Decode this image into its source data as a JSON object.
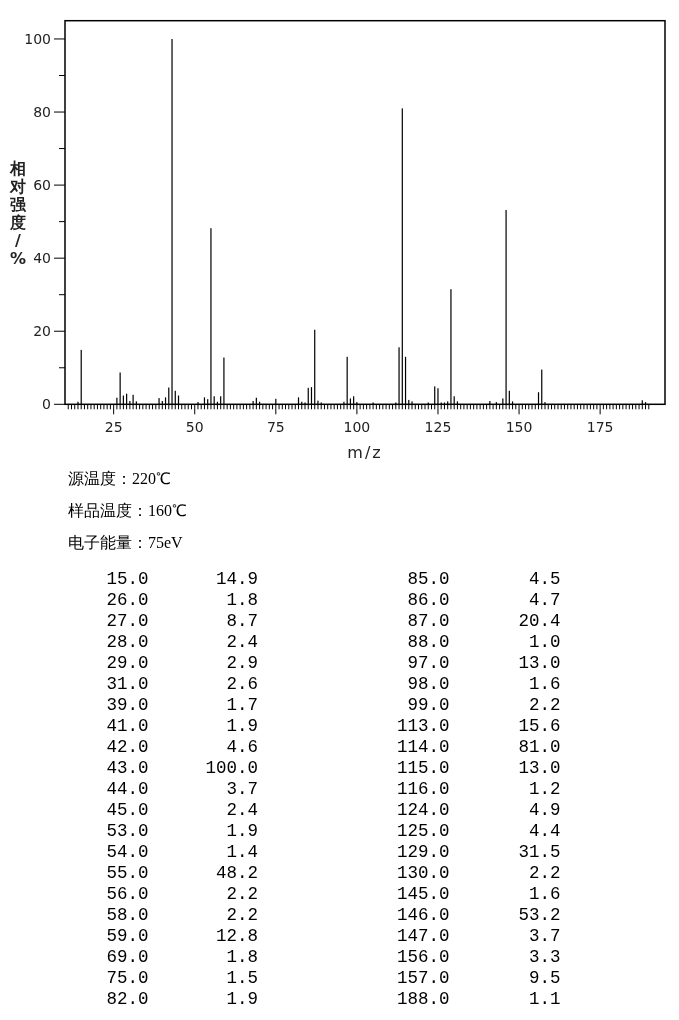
{
  "chart_data": [
    {
      "type": "bar",
      "xlabel": "m/z",
      "ylabel": "相对强度/%",
      "color": "#000000",
      "annotations": [
        "源温度：220℃",
        "样品温度：160℃",
        "电子能量：75eV"
      ],
      "xlim": [
        10,
        195
      ],
      "ylim": [
        0,
        105
      ],
      "yticks": [
        0,
        {
          "value": 10,
          "label": null
        },
        20,
        {
          "value": 30,
          "label": null
        },
        40,
        {
          "value": 50,
          "label": null
        },
        60,
        {
          "value": 70,
          "label": null
        },
        80,
        {
          "value": 90,
          "label": null
        },
        100
      ],
      "xticks": [
        {
          "value": 11,
          "label": null
        },
        {
          "value": 12,
          "label": null
        },
        {
          "value": 13,
          "label": null
        },
        {
          "value": 14,
          "label": null
        },
        {
          "value": 15,
          "label": null
        },
        {
          "value": 16,
          "label": null
        },
        {
          "value": 17,
          "label": null
        },
        {
          "value": 18,
          "label": null
        },
        {
          "value": 19,
          "label": null
        },
        {
          "value": 20,
          "label": null
        },
        {
          "value": 21,
          "label": null
        },
        {
          "value": 22,
          "label": null
        },
        {
          "value": 23,
          "label": null
        },
        {
          "value": 24,
          "label": null
        },
        25,
        {
          "value": 26,
          "label": null
        },
        {
          "value": 27,
          "label": null
        },
        {
          "value": 28,
          "label": null
        },
        {
          "value": 29,
          "label": null
        },
        {
          "value": 30,
          "label": null
        },
        {
          "value": 31,
          "label": null
        },
        {
          "value": 32,
          "label": null
        },
        {
          "value": 33,
          "label": null
        },
        {
          "value": 34,
          "label": null
        },
        {
          "value": 35,
          "label": null
        },
        {
          "value": 36,
          "label": null
        },
        {
          "value": 37,
          "label": null
        },
        {
          "value": 38,
          "label": null
        },
        {
          "value": 39,
          "label": null
        },
        {
          "value": 40,
          "label": null
        },
        {
          "value": 41,
          "label": null
        },
        {
          "value": 42,
          "label": null
        },
        {
          "value": 43,
          "label": null
        },
        {
          "value": 44,
          "label": null
        },
        {
          "value": 45,
          "label": null
        },
        {
          "value": 46,
          "label": null
        },
        {
          "value": 47,
          "label": null
        },
        {
          "value": 48,
          "label": null
        },
        {
          "value": 49,
          "label": null
        },
        50,
        {
          "value": 51,
          "label": null
        },
        {
          "value": 52,
          "label": null
        },
        {
          "value": 53,
          "label": null
        },
        {
          "value": 54,
          "label": null
        },
        {
          "value": 55,
          "label": null
        },
        {
          "value": 56,
          "label": null
        },
        {
          "value": 57,
          "label": null
        },
        {
          "value": 58,
          "label": null
        },
        {
          "value": 59,
          "label": null
        },
        {
          "value": 60,
          "label": null
        },
        {
          "value": 61,
          "label": null
        },
        {
          "value": 62,
          "label": null
        },
        {
          "value": 63,
          "label": null
        },
        {
          "value": 64,
          "label": null
        },
        {
          "value": 65,
          "label": null
        },
        {
          "value": 66,
          "label": null
        },
        {
          "value": 67,
          "label": null
        },
        {
          "value": 68,
          "label": null
        },
        {
          "value": 69,
          "label": null
        },
        {
          "value": 70,
          "label": null
        },
        {
          "value": 71,
          "label": null
        },
        {
          "value": 72,
          "label": null
        },
        {
          "value": 73,
          "label": null
        },
        {
          "value": 74,
          "label": null
        },
        75,
        {
          "value": 76,
          "label": null
        },
        {
          "value": 77,
          "label": null
        },
        {
          "value": 78,
          "label": null
        },
        {
          "value": 79,
          "label": null
        },
        {
          "value": 80,
          "label": null
        },
        {
          "value": 81,
          "label": null
        },
        {
          "value": 82,
          "label": null
        },
        {
          "value": 83,
          "label": null
        },
        {
          "value": 84,
          "label": null
        },
        {
          "value": 85,
          "label": null
        },
        {
          "value": 86,
          "label": null
        },
        {
          "value": 87,
          "label": null
        },
        {
          "value": 88,
          "label": null
        },
        {
          "value": 89,
          "label": null
        },
        {
          "value": 90,
          "label": null
        },
        {
          "value": 91,
          "label": null
        },
        {
          "value": 92,
          "label": null
        },
        {
          "value": 93,
          "label": null
        },
        {
          "value": 94,
          "label": null
        },
        {
          "value": 95,
          "label": null
        },
        {
          "value": 96,
          "label": null
        },
        {
          "value": 97,
          "label": null
        },
        {
          "value": 98,
          "label": null
        },
        {
          "value": 99,
          "label": null
        },
        100,
        {
          "value": 101,
          "label": null
        },
        {
          "value": 102,
          "label": null
        },
        {
          "value": 103,
          "label": null
        },
        {
          "value": 104,
          "label": null
        },
        {
          "value": 105,
          "label": null
        },
        {
          "value": 106,
          "label": null
        },
        {
          "value": 107,
          "label": null
        },
        {
          "value": 108,
          "label": null
        },
        {
          "value": 109,
          "label": null
        },
        {
          "value": 110,
          "label": null
        },
        {
          "value": 111,
          "label": null
        },
        {
          "value": 112,
          "label": null
        },
        {
          "value": 113,
          "label": null
        },
        {
          "value": 114,
          "label": null
        },
        {
          "value": 115,
          "label": null
        },
        {
          "value": 116,
          "label": null
        },
        {
          "value": 117,
          "label": null
        },
        {
          "value": 118,
          "label": null
        },
        {
          "value": 119,
          "label": null
        },
        {
          "value": 120,
          "label": null
        },
        {
          "value": 121,
          "label": null
        },
        {
          "value": 122,
          "label": null
        },
        {
          "value": 123,
          "label": null
        },
        {
          "value": 124,
          "label": null
        },
        125,
        {
          "value": 126,
          "label": null
        },
        {
          "value": 127,
          "label": null
        },
        {
          "value": 128,
          "label": null
        },
        {
          "value": 129,
          "label": null
        },
        {
          "value": 130,
          "label": null
        },
        {
          "value": 131,
          "label": null
        },
        {
          "value": 132,
          "label": null
        },
        {
          "value": 133,
          "label": null
        },
        {
          "value": 134,
          "label": null
        },
        {
          "value": 135,
          "label": null
        },
        {
          "value": 136,
          "label": null
        },
        {
          "value": 137,
          "label": null
        },
        {
          "value": 138,
          "label": null
        },
        {
          "value": 139,
          "label": null
        },
        {
          "value": 140,
          "label": null
        },
        {
          "value": 141,
          "label": null
        },
        {
          "value": 142,
          "label": null
        },
        {
          "value": 143,
          "label": null
        },
        {
          "value": 144,
          "label": null
        },
        {
          "value": 145,
          "label": null
        },
        {
          "value": 146,
          "label": null
        },
        {
          "value": 147,
          "label": null
        },
        {
          "value": 148,
          "label": null
        },
        {
          "value": 149,
          "label": null
        },
        150,
        {
          "value": 151,
          "label": null
        },
        {
          "value": 152,
          "label": null
        },
        {
          "value": 153,
          "label": null
        },
        {
          "value": 154,
          "label": null
        },
        {
          "value": 155,
          "label": null
        },
        {
          "value": 156,
          "label": null
        },
        {
          "value": 157,
          "label": null
        },
        {
          "value": 158,
          "label": null
        },
        {
          "value": 159,
          "label": null
        },
        {
          "value": 160,
          "label": null
        },
        {
          "value": 161,
          "label": null
        },
        {
          "value": 162,
          "label": null
        },
        {
          "value": 163,
          "label": null
        },
        {
          "value": 164,
          "label": null
        },
        {
          "value": 165,
          "label": null
        },
        {
          "value": 166,
          "label": null
        },
        {
          "value": 167,
          "label": null
        },
        {
          "value": 168,
          "label": null
        },
        {
          "value": 169,
          "label": null
        },
        {
          "value": 170,
          "label": null
        },
        {
          "value": 171,
          "label": null
        },
        {
          "value": 172,
          "label": null
        },
        {
          "value": 173,
          "label": null
        },
        {
          "value": 174,
          "label": null
        },
        175,
        {
          "value": 176,
          "label": null
        },
        {
          "value": 177,
          "label": null
        },
        {
          "value": 178,
          "label": null
        },
        {
          "value": 179,
          "label": null
        },
        {
          "value": 180,
          "label": null
        },
        {
          "value": 181,
          "label": null
        },
        {
          "value": 182,
          "label": null
        },
        {
          "value": 183,
          "label": null
        },
        {
          "value": 184,
          "label": null
        },
        {
          "value": 185,
          "label": null
        },
        {
          "value": 186,
          "label": null
        },
        {
          "value": 187,
          "label": null
        },
        {
          "value": 188,
          "label": null
        },
        {
          "value": 189,
          "label": null
        },
        {
          "value": 190,
          "label": null
        }
      ],
      "x": [
        14,
        15,
        26,
        27,
        28,
        29,
        30,
        31,
        32,
        39,
        40,
        41,
        42,
        43,
        44,
        45,
        51,
        53,
        54,
        55,
        56,
        57,
        58,
        59,
        68,
        69,
        70,
        75,
        82,
        83,
        84,
        85,
        86,
        87,
        88,
        89,
        96,
        97,
        98,
        99,
        100,
        105,
        112,
        113,
        114,
        115,
        116,
        117,
        122,
        124,
        125,
        126,
        127,
        128,
        129,
        130,
        131,
        141,
        143,
        145,
        146,
        147,
        148,
        156,
        157,
        158,
        188,
        189
      ],
      "values": [
        0.7,
        14.9,
        1.8,
        8.7,
        2.4,
        2.9,
        0.9,
        2.6,
        0.8,
        1.7,
        0.9,
        1.9,
        4.6,
        100,
        3.7,
        2.4,
        0.6,
        1.9,
        1.4,
        48.2,
        2.2,
        0.7,
        2.2,
        12.8,
        0.9,
        1.8,
        0.7,
        1.5,
        1.9,
        0.7,
        0.5,
        4.5,
        4.7,
        20.4,
        1.0,
        0.5,
        0.7,
        13.0,
        1.6,
        2.2,
        0.6,
        0.5,
        0.5,
        15.6,
        81.0,
        13.0,
        1.2,
        0.8,
        0.5,
        4.9,
        4.4,
        0.5,
        0.5,
        0.8,
        31.5,
        2.2,
        0.8,
        0.9,
        0.6,
        1.6,
        53.2,
        3.7,
        0.8,
        3.3,
        9.5,
        0.6,
        1.1,
        0.6
      ]
    },
    {
      "type": "other",
      "annotations": [
        "15.0 14.9",
        "26.0 1.8",
        "27.0 8.7",
        "28.0 2.4",
        "29.0 2.9",
        "31.0 2.6",
        "39.0 1.7",
        "41.0 1.9",
        "42.0 4.6",
        "43.0 100.0",
        "44.0 3.7",
        "45.0 2.4",
        "53.0 1.9",
        "54.0 1.4",
        "55.0 48.2",
        "56.0 2.2",
        "58.0 2.2",
        "59.0 12.8",
        "69.0 1.8",
        "75.0 1.5",
        "82.0 1.9",
        "85.0 4.5",
        "86.0 4.7",
        "87.0 20.4",
        "88.0 1.0",
        "97.0 13.0",
        "98.0 1.6",
        "99.0 2.2",
        "113.0 15.6",
        "114.0 81.0",
        "115.0 13.0",
        "116.0 1.2",
        "124.0 4.9",
        "125.0 4.4",
        "129.0 31.5",
        "130.0 2.2",
        "145.0 1.6",
        "146.0 53.2",
        "147.0 3.7",
        "156.0 3.3",
        "157.0 9.5",
        "188.0 1.1"
      ]
    }
  ]
}
